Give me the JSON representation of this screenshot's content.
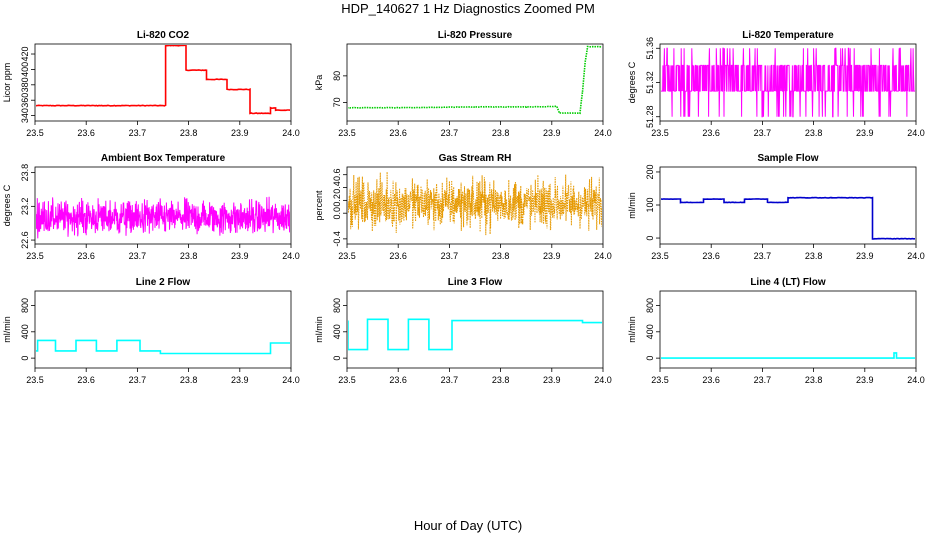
{
  "page": {
    "title": "HDP_140627  1 Hz Diagnostics Zoomed PM",
    "x_caption": "Hour of Day (UTC)"
  },
  "colors": {
    "co2": "#ff0000",
    "pressure": "#00cc00",
    "temperature": "#ff00ff",
    "box_temperature": "#ff00ff",
    "rh": "#e69900",
    "sample_flow": "#0000cc",
    "line_flow": "#00ffff"
  },
  "chart_data": [
    {
      "type": "line",
      "title": "Li-820 CO2",
      "ylabel": "Licor ppm",
      "xlabel": "",
      "xlim": [
        23.5,
        24.0
      ],
      "ylim": [
        333,
        433
      ],
      "x_ticks": [
        23.5,
        23.6,
        23.7,
        23.8,
        23.9,
        24.0
      ],
      "x_tick_labels": [
        "23.5",
        "23.6",
        "23.7",
        "23.8",
        "23.9",
        "24.0"
      ],
      "y_ticks": [
        340,
        360,
        380,
        400,
        420
      ],
      "y_tick_labels": [
        "340",
        "360",
        "380",
        "400",
        "420"
      ],
      "color_key": "co2",
      "style": "step",
      "noise": 0.8,
      "series": [
        {
          "x": [
            23.5,
            23.745,
            23.755,
            23.795,
            23.835,
            23.875,
            23.92,
            23.955,
            23.96,
            23.97,
            24.0
          ],
          "y": [
            353,
            353,
            431,
            399,
            387,
            374,
            343,
            343,
            350,
            347,
            347
          ]
        }
      ]
    },
    {
      "type": "line",
      "title": "Li-820 Pressure",
      "ylabel": "kPa",
      "xlabel": "",
      "xlim": [
        23.5,
        24.0
      ],
      "ylim": [
        63,
        92
      ],
      "x_ticks": [
        23.5,
        23.6,
        23.7,
        23.8,
        23.9,
        24.0
      ],
      "x_tick_labels": [
        "23.5",
        "23.6",
        "23.7",
        "23.8",
        "23.9",
        "24.0"
      ],
      "y_ticks": [
        70,
        80
      ],
      "y_tick_labels": [
        "70",
        "80"
      ],
      "color_key": "pressure",
      "style": "line",
      "noise": 0.15,
      "dotted": true,
      "series": [
        {
          "x": [
            23.5,
            23.6,
            23.75,
            23.85,
            23.91,
            23.915,
            23.955,
            23.96,
            23.965,
            23.97,
            24.0
          ],
          "y": [
            68,
            68,
            68.3,
            68.3,
            68.5,
            66,
            66,
            74,
            85,
            91,
            91
          ]
        }
      ]
    },
    {
      "type": "line",
      "title": "Li-820 Temperature",
      "ylabel": "degrees C",
      "xlabel": "",
      "xlim": [
        23.5,
        24.0
      ],
      "ylim": [
        51.275,
        51.365
      ],
      "x_ticks": [
        23.5,
        23.6,
        23.7,
        23.8,
        23.9,
        24.0
      ],
      "x_tick_labels": [
        "23.5",
        "23.6",
        "23.7",
        "23.8",
        "23.9",
        "24.0"
      ],
      "y_ticks": [
        51.28,
        51.32,
        51.36
      ],
      "y_tick_labels": [
        "51.28",
        "51.32",
        "51.36"
      ],
      "color_key": "temperature",
      "style": "quantized",
      "series": [
        {
          "levels": [
            51.28,
            51.31,
            51.34,
            51.36
          ],
          "base": 51.31,
          "x_range": [
            23.5,
            24.0
          ]
        }
      ]
    },
    {
      "type": "line",
      "title": "Ambient Box Temperature",
      "ylabel": "degrees C",
      "xlabel": "",
      "xlim": [
        23.5,
        24.0
      ],
      "ylim": [
        22.53,
        23.9
      ],
      "x_ticks": [
        23.5,
        23.6,
        23.7,
        23.8,
        23.9,
        24.0
      ],
      "x_tick_labels": [
        "23.5",
        "23.6",
        "23.7",
        "23.8",
        "23.9",
        "24.0"
      ],
      "y_ticks": [
        22.6,
        23.2,
        23.8
      ],
      "y_tick_labels": [
        "22.6",
        "23.2",
        "23.8"
      ],
      "color_key": "box_temperature",
      "style": "noise",
      "series": [
        {
          "center": 23.0,
          "spread": 0.45,
          "x_range": [
            23.5,
            24.0
          ]
        }
      ]
    },
    {
      "type": "line",
      "title": "Gas Stream RH",
      "ylabel": "percent",
      "xlabel": "",
      "xlim": [
        23.5,
        24.0
      ],
      "ylim": [
        -0.48,
        0.72
      ],
      "x_ticks": [
        23.5,
        23.6,
        23.7,
        23.8,
        23.9,
        24.0
      ],
      "x_tick_labels": [
        "23.5",
        "23.6",
        "23.7",
        "23.8",
        "23.9",
        "24.0"
      ],
      "y_ticks": [
        -0.4,
        0.0,
        0.2,
        0.4,
        0.6
      ],
      "y_tick_labels": [
        "-0.4",
        "0.0",
        "0.2",
        "0.4",
        "0.6"
      ],
      "color_key": "rh",
      "style": "noise",
      "dotted": true,
      "series": [
        {
          "center": 0.15,
          "spread": 0.55,
          "x_range": [
            23.5,
            24.0
          ]
        }
      ]
    },
    {
      "type": "line",
      "title": "Sample Flow",
      "ylabel": "ml/min",
      "xlabel": "",
      "xlim": [
        23.5,
        24.0
      ],
      "ylim": [
        -18,
        215
      ],
      "x_ticks": [
        23.5,
        23.6,
        23.7,
        23.8,
        23.9,
        24.0
      ],
      "x_tick_labels": [
        "23.5",
        "23.6",
        "23.7",
        "23.8",
        "23.9",
        "24.0"
      ],
      "y_ticks": [
        0,
        100,
        200
      ],
      "y_tick_labels": [
        "0",
        "100",
        "200"
      ],
      "color_key": "sample_flow",
      "style": "step",
      "noise": 1.2,
      "series": [
        {
          "x": [
            23.5,
            23.54,
            23.585,
            23.625,
            23.665,
            23.71,
            23.75,
            23.835,
            23.915,
            23.92,
            24.0
          ],
          "y": [
            118,
            108,
            118,
            108,
            118,
            108,
            122,
            122,
            -2,
            -2,
            -2
          ]
        }
      ]
    },
    {
      "type": "line",
      "title": "Line 2 Flow",
      "ylabel": "ml/min",
      "xlabel": "",
      "xlim": [
        23.5,
        24.0
      ],
      "ylim": [
        -150,
        1020
      ],
      "x_ticks": [
        23.5,
        23.6,
        23.7,
        23.8,
        23.9,
        24.0
      ],
      "x_tick_labels": [
        "23.5",
        "23.6",
        "23.7",
        "23.8",
        "23.9",
        "24.0"
      ],
      "y_ticks": [
        0,
        400,
        800
      ],
      "y_tick_labels": [
        "0",
        "400",
        "800"
      ],
      "color_key": "line_flow",
      "style": "step",
      "noise": 0,
      "series": [
        {
          "x": [
            23.5,
            23.505,
            23.54,
            23.58,
            23.62,
            23.66,
            23.705,
            23.745,
            23.96,
            24.0
          ],
          "y": [
            110,
            270,
            110,
            270,
            110,
            270,
            110,
            70,
            230,
            230
          ]
        }
      ]
    },
    {
      "type": "line",
      "title": "Line 3 Flow",
      "ylabel": "ml/min",
      "xlabel": "",
      "xlim": [
        23.5,
        24.0
      ],
      "ylim": [
        -150,
        1020
      ],
      "x_ticks": [
        23.5,
        23.6,
        23.7,
        23.8,
        23.9,
        24.0
      ],
      "x_tick_labels": [
        "23.5",
        "23.6",
        "23.7",
        "23.8",
        "23.9",
        "24.0"
      ],
      "y_ticks": [
        0,
        400,
        800
      ],
      "y_tick_labels": [
        "0",
        "400",
        "800"
      ],
      "color_key": "line_flow",
      "style": "step",
      "noise": 0,
      "series": [
        {
          "x": [
            23.5,
            23.502,
            23.54,
            23.58,
            23.62,
            23.66,
            23.705,
            23.96,
            24.0
          ],
          "y": [
            560,
            130,
            590,
            130,
            590,
            130,
            570,
            540,
            540
          ]
        }
      ]
    },
    {
      "type": "line",
      "title": "Line 4 (LT) Flow",
      "ylabel": "ml/min",
      "xlabel": "",
      "xlim": [
        23.5,
        24.0
      ],
      "ylim": [
        -150,
        1020
      ],
      "x_ticks": [
        23.5,
        23.6,
        23.7,
        23.8,
        23.9,
        24.0
      ],
      "x_tick_labels": [
        "23.5",
        "23.6",
        "23.7",
        "23.8",
        "23.9",
        "24.0"
      ],
      "y_ticks": [
        0,
        400,
        800
      ],
      "y_tick_labels": [
        "0",
        "400",
        "800"
      ],
      "color_key": "line_flow",
      "style": "step",
      "noise": 0,
      "series": [
        {
          "x": [
            23.5,
            23.957,
            23.96,
            23.962,
            24.0
          ],
          "y": [
            0,
            80,
            80,
            0,
            0
          ]
        }
      ]
    }
  ]
}
